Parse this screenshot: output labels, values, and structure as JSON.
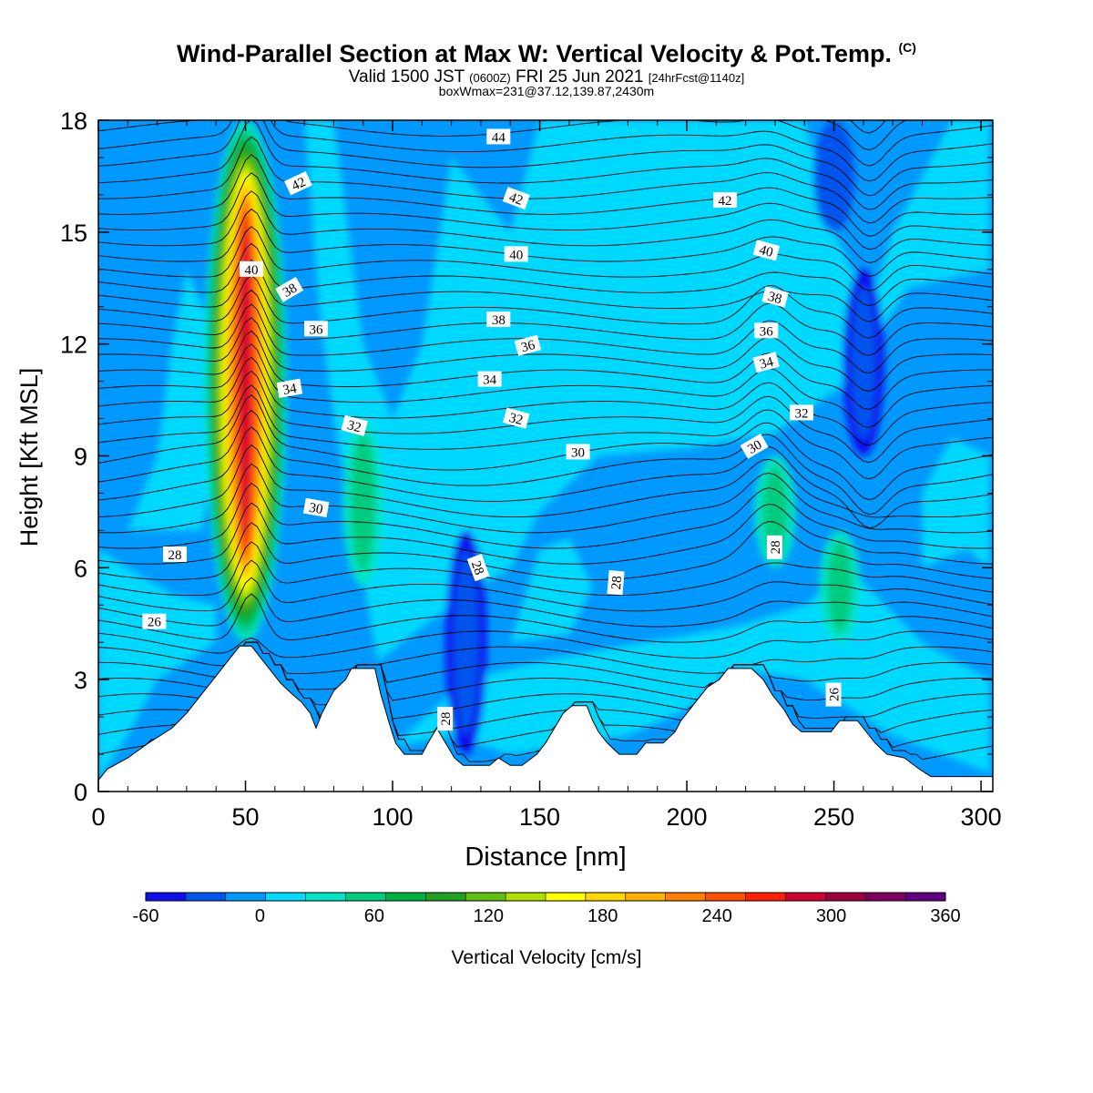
{
  "title": {
    "main": "Wind-Parallel Section at Max W: Vertical Velocity & Pot.Temp.",
    "copyright": "(C)",
    "valid_prefix": "Valid 1500 JST",
    "valid_utc": "(0600Z)",
    "valid_date": "FRI 25 Jun 2021",
    "forecast": "[24hrFcst@1140z]",
    "box_info": "boxWmax=231@37.12,139.87,2430m"
  },
  "colors": {
    "background": "#0099ff",
    "terrain": "#ffffff",
    "contour": "#000000",
    "palette": [
      "#1010ee",
      "#0055ee",
      "#0099ff",
      "#00dcff",
      "#00e5c8",
      "#00cc80",
      "#00b040",
      "#20a020",
      "#60c010",
      "#b0e000",
      "#ffff00",
      "#ffd800",
      "#ffb000",
      "#ff8000",
      "#ff5000",
      "#ff2000",
      "#d00030",
      "#a00040",
      "#800060",
      "#600080"
    ]
  },
  "chart_data": {
    "type": "heatmap",
    "xlabel": "Distance [nm]",
    "ylabel": "Height [Kft MSL]",
    "xlim": [
      0,
      304
    ],
    "ylim": [
      0,
      18
    ],
    "xticks": [
      0,
      50,
      100,
      150,
      200,
      250,
      300
    ],
    "yticks": [
      0,
      3,
      6,
      9,
      12,
      15,
      18
    ],
    "colorbar": {
      "label": "Vertical Velocity [cm/s]",
      "min": -60,
      "max": 360,
      "step": 20,
      "tick_values": [
        -60,
        0,
        60,
        120,
        180,
        240,
        300,
        360
      ]
    },
    "w_features": [
      {
        "x": 50,
        "y_base": 4.0,
        "y_top": 18,
        "w_peak": 280,
        "note": "main updraft core"
      },
      {
        "x": 90,
        "y_base": 5.5,
        "y_top": 10,
        "w_peak": 60
      },
      {
        "x": 230,
        "y_base": 6,
        "y_top": 9,
        "w_peak": 60
      },
      {
        "x": 252,
        "y_base": 4,
        "y_top": 7,
        "w_peak": 60
      },
      {
        "x": 125,
        "y_base": 1,
        "y_top": 7,
        "w_peak": -50,
        "note": "downdraft"
      },
      {
        "x": 260,
        "y_base": 9,
        "y_top": 14,
        "w_peak": -50,
        "note": "downdraft"
      },
      {
        "x": 250,
        "y_base": 15,
        "y_top": 18,
        "w_peak": -40,
        "note": "downdraft"
      }
    ],
    "terrain_kft": [
      [
        0,
        0.3
      ],
      [
        3,
        0.6
      ],
      [
        10,
        0.9
      ],
      [
        17,
        1.3
      ],
      [
        25,
        1.7
      ],
      [
        30,
        2.1
      ],
      [
        35,
        2.6
      ],
      [
        38,
        2.9
      ],
      [
        42,
        3.3
      ],
      [
        45,
        3.6
      ],
      [
        48,
        3.9
      ],
      [
        52,
        3.9
      ],
      [
        55,
        3.6
      ],
      [
        58,
        3.3
      ],
      [
        62,
        2.9
      ],
      [
        66,
        2.6
      ],
      [
        69,
        2.4
      ],
      [
        72,
        2.1
      ],
      [
        74,
        1.7
      ],
      [
        76,
        2.1
      ],
      [
        78,
        2.4
      ],
      [
        80,
        2.7
      ],
      [
        84,
        3.0
      ],
      [
        86,
        3.3
      ],
      [
        94,
        3.3
      ],
      [
        96,
        2.6
      ],
      [
        99,
        1.8
      ],
      [
        101,
        1.3
      ],
      [
        104,
        1.0
      ],
      [
        110,
        1.0
      ],
      [
        112,
        1.3
      ],
      [
        115,
        1.7
      ],
      [
        118,
        1.3
      ],
      [
        121,
        0.9
      ],
      [
        124,
        0.7
      ],
      [
        133,
        0.7
      ],
      [
        136,
        0.9
      ],
      [
        140,
        0.7
      ],
      [
        144,
        0.7
      ],
      [
        149,
        1.0
      ],
      [
        152,
        1.3
      ],
      [
        155,
        1.7
      ],
      [
        158,
        2.1
      ],
      [
        161,
        2.3
      ],
      [
        166,
        2.3
      ],
      [
        168,
        1.9
      ],
      [
        170,
        1.6
      ],
      [
        173,
        1.3
      ],
      [
        177,
        1.0
      ],
      [
        183,
        1.0
      ],
      [
        186,
        1.3
      ],
      [
        192,
        1.3
      ],
      [
        196,
        1.6
      ],
      [
        198,
        1.9
      ],
      [
        201,
        2.2
      ],
      [
        204,
        2.5
      ],
      [
        207,
        2.8
      ],
      [
        211,
        3.0
      ],
      [
        214,
        3.3
      ],
      [
        222,
        3.3
      ],
      [
        226,
        3.0
      ],
      [
        229,
        2.6
      ],
      [
        233,
        2.2
      ],
      [
        236,
        1.8
      ],
      [
        239,
        1.6
      ],
      [
        243,
        1.6
      ],
      [
        249,
        1.6
      ],
      [
        252,
        1.9
      ],
      [
        258,
        1.9
      ],
      [
        261,
        1.6
      ],
      [
        264,
        1.3
      ],
      [
        268,
        1.0
      ],
      [
        274,
        0.9
      ],
      [
        279,
        0.6
      ],
      [
        283,
        0.4
      ],
      [
        300,
        0.4
      ],
      [
        303,
        0.4
      ]
    ],
    "theta_labels": [
      {
        "text": "44",
        "x": 136,
        "y": 17.55,
        "rot": 0
      },
      {
        "text": "42",
        "x": 68,
        "y": 16.3,
        "rot": -25
      },
      {
        "text": "42",
        "x": 142,
        "y": 15.9,
        "rot": 20
      },
      {
        "text": "42",
        "x": 213,
        "y": 15.85,
        "rot": 0
      },
      {
        "text": "40",
        "x": 52,
        "y": 14.0,
        "rot": 0
      },
      {
        "text": "40",
        "x": 142,
        "y": 14.4,
        "rot": 0
      },
      {
        "text": "40",
        "x": 227,
        "y": 14.5,
        "rot": 15
      },
      {
        "text": "38",
        "x": 65,
        "y": 13.45,
        "rot": -30
      },
      {
        "text": "38",
        "x": 136,
        "y": 12.65,
        "rot": 0
      },
      {
        "text": "38",
        "x": 230,
        "y": 13.25,
        "rot": 15
      },
      {
        "text": "36",
        "x": 74,
        "y": 12.4,
        "rot": 0
      },
      {
        "text": "36",
        "x": 146,
        "y": 11.95,
        "rot": -15
      },
      {
        "text": "36",
        "x": 227,
        "y": 12.35,
        "rot": 0
      },
      {
        "text": "34",
        "x": 65,
        "y": 10.8,
        "rot": -10
      },
      {
        "text": "34",
        "x": 133,
        "y": 11.05,
        "rot": 0
      },
      {
        "text": "34",
        "x": 227,
        "y": 11.5,
        "rot": -15
      },
      {
        "text": "32",
        "x": 87,
        "y": 9.8,
        "rot": 15
      },
      {
        "text": "32",
        "x": 142,
        "y": 10.0,
        "rot": 15
      },
      {
        "text": "32",
        "x": 239,
        "y": 10.15,
        "rot": 0
      },
      {
        "text": "30",
        "x": 74,
        "y": 7.6,
        "rot": 10
      },
      {
        "text": "30",
        "x": 163,
        "y": 9.1,
        "rot": 0
      },
      {
        "text": "30",
        "x": 223,
        "y": 9.25,
        "rot": -30
      },
      {
        "text": "28",
        "x": 26,
        "y": 6.35,
        "rot": 0
      },
      {
        "text": "28",
        "x": 129,
        "y": 6.0,
        "rot": 70
      },
      {
        "text": "28",
        "x": 176,
        "y": 5.6,
        "rot": -85
      },
      {
        "text": "28",
        "x": 230,
        "y": 6.55,
        "rot": -90
      },
      {
        "text": "28",
        "x": 118,
        "y": 1.95,
        "rot": -90
      },
      {
        "text": "26",
        "x": 19,
        "y": 4.55,
        "rot": 0
      },
      {
        "text": "26",
        "x": 250,
        "y": 2.6,
        "rot": -90
      }
    ]
  }
}
